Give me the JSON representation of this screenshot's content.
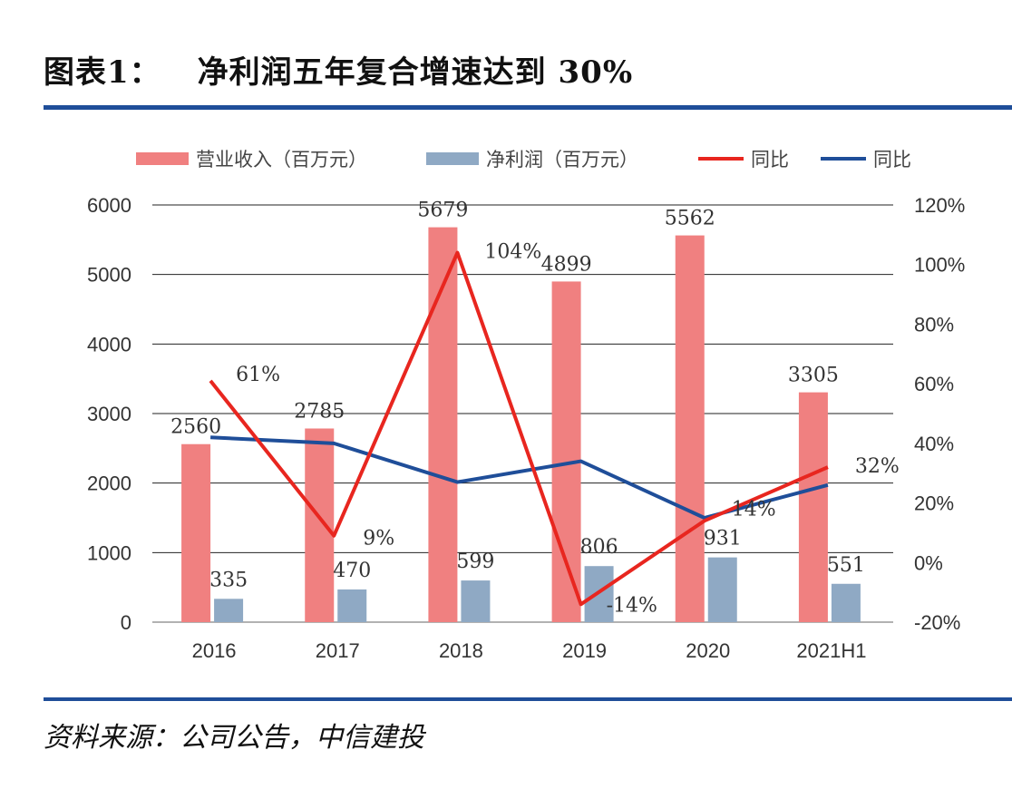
{
  "header": {
    "title_num": "图表1：",
    "title_text": "净利润五年复合增速达到 30%"
  },
  "footer": {
    "source": "资料来源：公司公告，中信建投"
  },
  "colors": {
    "revenue_bar": "#f08080",
    "profit_bar": "#8fa9c4",
    "revenue_yoy_line": "#e8261f",
    "profit_yoy_line": "#1f4e99",
    "rule": "#1f4e99"
  },
  "chart_data": {
    "type": "bar",
    "categories": [
      "2016",
      "2017",
      "2018",
      "2019",
      "2020",
      "2021H1"
    ],
    "series": [
      {
        "name": "营业收入（百万元）",
        "kind": "bar",
        "axis": "left",
        "values": [
          2560,
          2785,
          5679,
          4899,
          5562,
          3305
        ]
      },
      {
        "name": "净利润（百万元）",
        "kind": "bar",
        "axis": "left",
        "values": [
          335,
          470,
          599,
          806,
          931,
          551
        ]
      },
      {
        "name": "同比",
        "kind": "line",
        "axis": "right",
        "values": [
          61,
          9,
          104,
          -14,
          14,
          32
        ]
      },
      {
        "name": "同比",
        "kind": "line",
        "axis": "right",
        "values": [
          42,
          40,
          27,
          34,
          15,
          26
        ]
      }
    ],
    "bar_labels": {
      "revenue": [
        "2560",
        "2785",
        "5679",
        "4899",
        "5562",
        "3305"
      ],
      "profit": [
        "335",
        "470",
        "599",
        "806",
        "931",
        "551"
      ]
    },
    "line_labels": [
      "61%",
      "9%",
      "104%",
      "-14%",
      "14%",
      "32%"
    ],
    "left_axis": {
      "ticks": [
        "0",
        "1000",
        "2000",
        "3000",
        "4000",
        "5000",
        "6000"
      ],
      "ylim": [
        0,
        6000
      ]
    },
    "right_axis": {
      "ticks": [
        "-20%",
        "0%",
        "20%",
        "40%",
        "60%",
        "80%",
        "100%",
        "120%"
      ],
      "ylim": [
        -20,
        120
      ]
    },
    "grid": true,
    "legend_position": "top"
  }
}
